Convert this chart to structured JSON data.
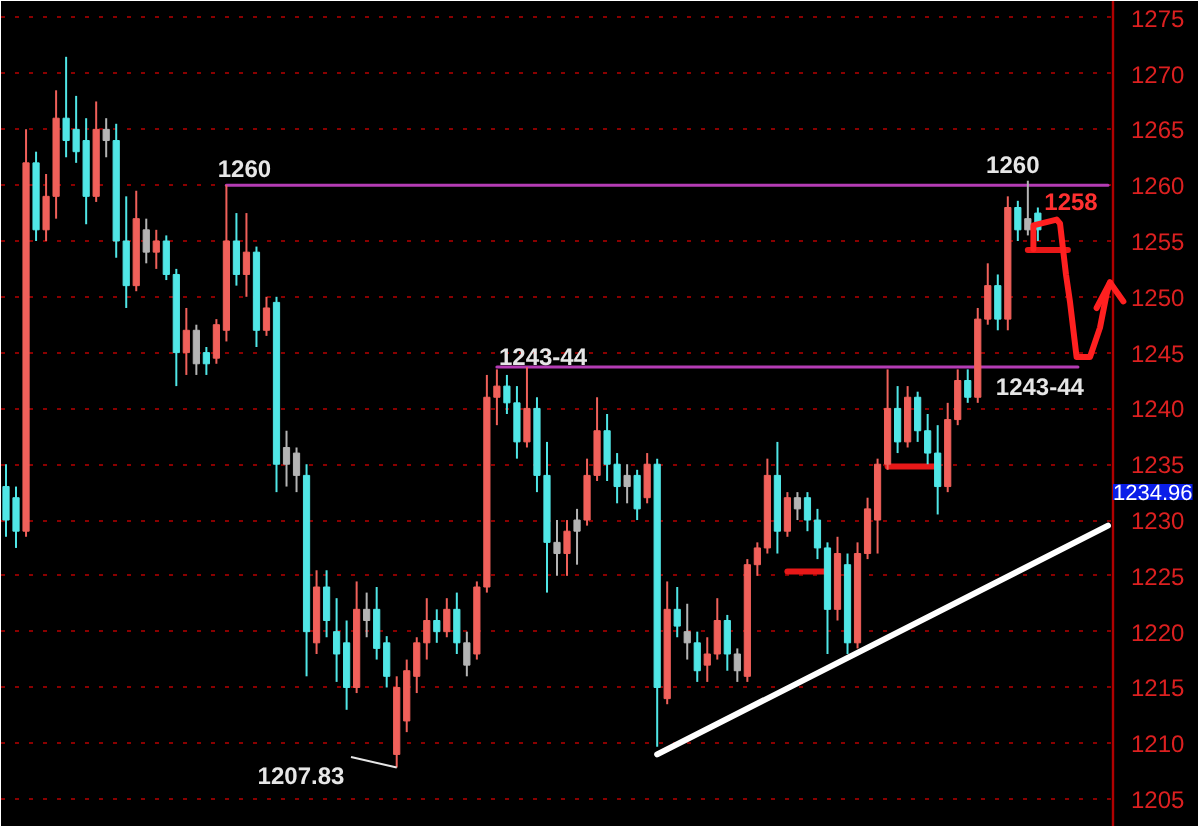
{
  "chart_data": {
    "type": "candlestick",
    "categories": [
      null,
      null,
      null,
      null,
      null,
      null,
      null,
      null,
      null,
      null,
      null,
      null,
      null,
      null,
      null,
      null,
      null,
      null,
      null,
      null,
      null,
      null,
      null,
      null,
      null,
      null,
      null,
      null,
      null,
      null,
      null,
      null,
      null,
      null,
      null,
      null,
      null,
      null,
      null,
      null,
      null,
      null,
      null,
      null,
      null,
      null,
      null,
      null,
      null,
      null,
      null,
      null,
      null,
      null,
      null,
      null,
      null,
      null,
      null,
      null,
      null,
      null,
      null,
      null,
      null,
      null,
      null,
      null,
      null,
      null,
      null,
      null,
      null,
      null,
      null,
      null,
      null,
      null,
      null,
      null,
      null,
      null,
      null,
      null,
      null,
      null,
      null,
      null,
      null,
      null,
      null,
      null,
      null,
      null,
      null,
      null,
      null,
      null,
      null,
      null,
      null,
      null,
      null,
      null,
      null,
      null,
      null,
      null,
      null,
      null,
      null
    ],
    "ohlc": [
      [
        1233,
        1235,
        1228.5,
        1230
      ],
      [
        1232,
        1233,
        1227.5,
        1229
      ],
      [
        1229,
        1265,
        1228.5,
        1262
      ],
      [
        1262,
        1263,
        1255,
        1256
      ],
      [
        1256,
        1261,
        1255,
        1259
      ],
      [
        1259,
        1268.5,
        1257,
        1266
      ],
      [
        1266,
        1271.5,
        1262.5,
        1264
      ],
      [
        1265,
        1268,
        1262,
        1263
      ],
      [
        1264,
        1266,
        1256.5,
        1259
      ],
      [
        1259,
        1267.5,
        1258.5,
        1265
      ],
      [
        1265,
        1266,
        1262.5,
        1264
      ],
      [
        1264,
        1265.5,
        1253.5,
        1255
      ],
      [
        1255,
        1259,
        1249,
        1251
      ],
      [
        1251,
        1259.5,
        1250.5,
        1257
      ],
      [
        1256,
        1257,
        1253,
        1254
      ],
      [
        1254,
        1256,
        1252.5,
        1255
      ],
      [
        1255,
        1255.5,
        1251.5,
        1252
      ],
      [
        1252,
        1252.5,
        1242,
        1245
      ],
      [
        1245,
        1249,
        1243,
        1247
      ],
      [
        1247,
        1247.5,
        1243,
        1244
      ],
      [
        1245,
        1245.5,
        1243,
        1244
      ],
      [
        1244.5,
        1248,
        1244,
        1247.5
      ],
      [
        1247,
        1260,
        1246,
        1255
      ],
      [
        1255,
        1257.5,
        1251,
        1252
      ],
      [
        1252,
        1257.5,
        1250,
        1254
      ],
      [
        1254,
        1254.5,
        1245.5,
        1247
      ],
      [
        1247,
        1250,
        1246.5,
        1249
      ],
      [
        1249.5,
        1250,
        1232.5,
        1235
      ],
      [
        1235,
        1238,
        1233,
        1236.5
      ],
      [
        1236,
        1236.5,
        1232.5,
        1234
      ],
      [
        1234,
        1235,
        1216,
        1220
      ],
      [
        1219,
        1225.5,
        1218,
        1224
      ],
      [
        1224,
        1225.5,
        1219.5,
        1221
      ],
      [
        1220,
        1223,
        1215.5,
        1218
      ],
      [
        1219,
        1221,
        1213,
        1215
      ],
      [
        1215,
        1224.5,
        1214.5,
        1222
      ],
      [
        1222,
        1223.5,
        1219.5,
        1221
      ],
      [
        1222,
        1224,
        1217.5,
        1218.5
      ],
      [
        1219,
        1219.6,
        1215,
        1216
      ],
      [
        1209,
        1216,
        1207.83,
        1215
      ],
      [
        1212,
        1217.5,
        1211,
        1216.5
      ],
      [
        1216,
        1219.5,
        1214.5,
        1219
      ],
      [
        1219,
        1223,
        1217.5,
        1221
      ],
      [
        1221,
        1222,
        1219,
        1220
      ],
      [
        1220,
        1223,
        1219.5,
        1222
      ],
      [
        1222,
        1223.5,
        1218,
        1219
      ],
      [
        1219,
        1220,
        1216,
        1217
      ],
      [
        1218,
        1224.5,
        1217.5,
        1224
      ],
      [
        1224,
        1243,
        1223.5,
        1241
      ],
      [
        1241,
        1243.5,
        1238.5,
        1242
      ],
      [
        1242,
        1243,
        1239.5,
        1240.5
      ],
      [
        1240.5,
        1242,
        1235.5,
        1237
      ],
      [
        1237,
        1243.7,
        1236.5,
        1240
      ],
      [
        1240,
        1241,
        1232.5,
        1234
      ],
      [
        1234,
        1237,
        1223.5,
        1228
      ],
      [
        1228,
        1230,
        1225,
        1227
      ],
      [
        1227,
        1230,
        1225,
        1229
      ],
      [
        1229,
        1231,
        1226,
        1230
      ],
      [
        1230,
        1235.5,
        1229.5,
        1234
      ],
      [
        1234,
        1241,
        1233.5,
        1238
      ],
      [
        1238,
        1239.5,
        1233.5,
        1235
      ],
      [
        1235,
        1236,
        1231.5,
        1233
      ],
      [
        1233,
        1235,
        1231.5,
        1234
      ],
      [
        1234,
        1234.5,
        1230,
        1231
      ],
      [
        1232,
        1236,
        1231.5,
        1235
      ],
      [
        1235,
        1235.5,
        1209.7,
        1215
      ],
      [
        1214,
        1224.5,
        1213.5,
        1222
      ],
      [
        1222,
        1224,
        1219.5,
        1220.5
      ],
      [
        1220,
        1222.5,
        1217.5,
        1219
      ],
      [
        1219,
        1220,
        1215.5,
        1216.5
      ],
      [
        1217,
        1219.5,
        1215.5,
        1218
      ],
      [
        1218,
        1223,
        1217.5,
        1221
      ],
      [
        1221,
        1221.5,
        1216.5,
        1218
      ],
      [
        1218,
        1218.5,
        1215.5,
        1216.5
      ],
      [
        1216,
        1226.5,
        1215.5,
        1226
      ],
      [
        1226,
        1228,
        1225,
        1227.5
      ],
      [
        1227.5,
        1235.5,
        1227,
        1234
      ],
      [
        1234,
        1237,
        1227,
        1229
      ],
      [
        1229,
        1232.5,
        1228.5,
        1232
      ],
      [
        1231,
        1232.5,
        1230,
        1232
      ],
      [
        1232,
        1232.5,
        1229,
        1230
      ],
      [
        1230,
        1231,
        1226.5,
        1227.5
      ],
      [
        1227.5,
        1228,
        1218,
        1222
      ],
      [
        1222,
        1228.5,
        1221,
        1227
      ],
      [
        1226,
        1227,
        1218,
        1219
      ],
      [
        1219,
        1228,
        1218.5,
        1227
      ],
      [
        1227,
        1232,
        1226.5,
        1231
      ],
      [
        1230,
        1235.5,
        1227,
        1235
      ],
      [
        1235,
        1243.5,
        1234.5,
        1240
      ],
      [
        1240,
        1242,
        1236,
        1237
      ],
      [
        1237,
        1242,
        1236.5,
        1241
      ],
      [
        1241,
        1241.5,
        1237,
        1238
      ],
      [
        1238,
        1239.5,
        1235,
        1236
      ],
      [
        1236,
        1238.5,
        1230.5,
        1233
      ],
      [
        1233,
        1240.5,
        1232.5,
        1239
      ],
      [
        1239,
        1243.5,
        1238.5,
        1242.5
      ],
      [
        1242.5,
        1243.5,
        1240.5,
        1241
      ],
      [
        1241,
        1249,
        1240.5,
        1248
      ],
      [
        1248,
        1253,
        1247.5,
        1251
      ],
      [
        1251,
        1252,
        1247,
        1248
      ],
      [
        1248,
        1259,
        1247,
        1258
      ],
      [
        1258,
        1258.6,
        1255,
        1256
      ],
      [
        1256,
        1260.4,
        1255.5,
        1257
      ],
      [
        1257.5,
        1258,
        1255,
        1256
      ],
      null,
      null,
      null,
      null,
      null,
      null,
      null
    ],
    "colors": [
      "#50e6e6",
      "#50e6e6",
      "#f0605a",
      "#50e6e6",
      "#f0605a",
      "#f0605a",
      "#50e6e6",
      "#50e6e6",
      "#50e6e6",
      "#f0605a",
      "#b4b4b4",
      "#50e6e6",
      "#50e6e6",
      "#f0605a",
      "#b4b4b4",
      "#f0605a",
      "#50e6e6",
      "#50e6e6",
      "#f0605a",
      "#b4b4b4",
      "#50e6e6",
      "#f0605a",
      "#f0605a",
      "#50e6e6",
      "#f0605a",
      "#50e6e6",
      "#f0605a",
      "#50e6e6",
      "#b4b4b4",
      "#b4b4b4",
      "#50e6e6",
      "#f0605a",
      "#50e6e6",
      "#50e6e6",
      "#50e6e6",
      "#f0605a",
      "#b4b4b4",
      "#50e6e6",
      "#50e6e6",
      "#f0605a",
      "#f0605a",
      "#f0605a",
      "#f0605a",
      "#50e6e6",
      "#f0605a",
      "#50e6e6",
      "#b4b4b4",
      "#f0605a",
      "#f0605a",
      "#f0605a",
      "#50e6e6",
      "#50e6e6",
      "#f0605a",
      "#50e6e6",
      "#50e6e6",
      "#b4b4b4",
      "#f0605a",
      "#b4b4b4",
      "#f0605a",
      "#f0605a",
      "#50e6e6",
      "#50e6e6",
      "#b4b4b4",
      "#50e6e6",
      "#f0605a",
      "#50e6e6",
      "#f0605a",
      "#50e6e6",
      "#b4b4b4",
      "#50e6e6",
      "#f0605a",
      "#f0605a",
      "#50e6e6",
      "#b4b4b4",
      "#f0605a",
      "#f0605a",
      "#f0605a",
      "#50e6e6",
      "#f0605a",
      "#b4b4b4",
      "#50e6e6",
      "#50e6e6",
      "#50e6e6",
      "#f0605a",
      "#50e6e6",
      "#f0605a",
      "#f0605a",
      "#f0605a",
      "#f0605a",
      "#50e6e6",
      "#f0605a",
      "#50e6e6",
      "#50e6e6",
      "#50e6e6",
      "#f0605a",
      "#f0605a",
      "#50e6e6",
      "#f0605a",
      "#f0605a",
      "#50e6e6",
      "#f0605a",
      "#50e6e6",
      "#b4b4b4",
      "#50e6e6",
      null,
      null,
      null,
      null,
      null,
      null,
      null
    ],
    "ylim": [
      1202.5,
      1276.5
    ],
    "yticks": [
      1205,
      1210,
      1215,
      1220,
      1225,
      1230,
      1235,
      1240,
      1245,
      1250,
      1255,
      1260,
      1265,
      1270,
      1275
    ],
    "grid": "y",
    "series": [
      {
        "type": "line",
        "color": "#b43cb4",
        "values": [
          null,
          null,
          null,
          null,
          null,
          null,
          null,
          null,
          null,
          null,
          null,
          null,
          null,
          null,
          null,
          null,
          null,
          null,
          null,
          null,
          null,
          null,
          1260,
          null,
          null,
          null,
          null,
          null,
          null,
          null,
          null,
          null,
          null,
          null,
          null,
          null,
          null,
          null,
          null,
          null,
          null,
          null,
          null,
          null,
          null,
          null,
          null,
          null,
          null,
          null,
          null,
          null,
          null,
          null,
          null,
          null,
          null,
          null,
          null,
          null,
          null,
          null,
          null,
          null,
          null,
          null,
          null,
          null,
          null,
          null,
          null,
          null,
          null,
          null,
          null,
          null,
          null,
          null,
          null,
          null,
          null,
          null,
          null,
          null,
          null,
          null,
          null,
          null,
          null,
          null,
          null,
          null,
          null,
          null,
          null,
          null,
          null,
          null,
          null,
          null,
          null,
          null,
          null,
          null,
          null,
          null,
          null,
          null,
          null,
          null,
          1260
        ]
      },
      {
        "type": "line",
        "color": "#b43cb4",
        "values": [
          null,
          null,
          null,
          null,
          null,
          null,
          null,
          null,
          null,
          null,
          null,
          null,
          null,
          null,
          null,
          null,
          null,
          null,
          null,
          null,
          null,
          null,
          null,
          null,
          null,
          null,
          null,
          null,
          null,
          null,
          null,
          null,
          null,
          null,
          null,
          null,
          null,
          null,
          null,
          null,
          null,
          null,
          null,
          null,
          null,
          null,
          null,
          null,
          null,
          1243.7,
          null,
          null,
          null,
          null,
          null,
          null,
          null,
          null,
          null,
          null,
          null,
          null,
          null,
          null,
          null,
          null,
          null,
          null,
          null,
          null,
          null,
          null,
          null,
          null,
          null,
          null,
          null,
          null,
          null,
          null,
          null,
          null,
          null,
          null,
          null,
          null,
          null,
          null,
          null,
          null,
          null,
          null,
          null,
          null,
          null,
          null,
          null,
          null,
          null,
          null,
          null,
          null,
          null,
          null,
          null,
          null,
          null,
          1243.7,
          null,
          null,
          null
        ]
      },
      {
        "type": "line",
        "color": "#ffffff",
        "values": [
          null,
          null,
          null,
          null,
          null,
          null,
          null,
          null,
          null,
          null,
          null,
          null,
          null,
          null,
          null,
          null,
          null,
          null,
          null,
          null,
          null,
          null,
          null,
          null,
          null,
          null,
          null,
          null,
          null,
          null,
          null,
          null,
          null,
          null,
          null,
          null,
          null,
          null,
          null,
          null,
          null,
          null,
          null,
          null,
          null,
          null,
          null,
          null,
          null,
          null,
          null,
          null,
          null,
          null,
          null,
          null,
          null,
          null,
          null,
          null,
          null,
          null,
          null,
          null,
          null,
          1209.0,
          null,
          null,
          null,
          null,
          null,
          null,
          null,
          null,
          null,
          null,
          null,
          null,
          null,
          null,
          null,
          null,
          null,
          null,
          null,
          null,
          null,
          null,
          null,
          null,
          null,
          null,
          null,
          null,
          null,
          null,
          null,
          null,
          null,
          null,
          null,
          null,
          null,
          null,
          null,
          null,
          null,
          null,
          null,
          null,
          1229.5
        ]
      },
      {
        "type": "line",
        "color": "#e81818",
        "values": [
          null,
          null,
          null,
          null,
          null,
          null,
          null,
          null,
          null,
          null,
          null,
          null,
          null,
          null,
          null,
          null,
          null,
          null,
          null,
          null,
          null,
          null,
          null,
          null,
          null,
          null,
          null,
          null,
          null,
          null,
          null,
          null,
          null,
          null,
          null,
          null,
          null,
          null,
          null,
          null,
          null,
          null,
          null,
          null,
          null,
          null,
          null,
          null,
          null,
          null,
          null,
          null,
          null,
          null,
          null,
          null,
          null,
          null,
          null,
          null,
          null,
          null,
          null,
          null,
          null,
          null,
          null,
          null,
          null,
          null,
          null,
          null,
          null,
          null,
          null,
          null,
          null,
          null,
          1225.4,
          null,
          null,
          null,
          1225.4,
          null,
          null,
          null,
          null,
          null,
          null,
          null,
          null,
          null,
          null,
          null,
          null,
          null,
          null,
          null,
          null,
          null,
          null,
          null,
          null,
          null,
          null,
          null,
          null,
          null,
          null,
          null,
          null
        ]
      },
      {
        "type": "line",
        "color": "#e81818",
        "values": [
          null,
          null,
          null,
          null,
          null,
          null,
          null,
          null,
          null,
          null,
          null,
          null,
          null,
          null,
          null,
          null,
          null,
          null,
          null,
          null,
          null,
          null,
          null,
          null,
          null,
          null,
          null,
          null,
          null,
          null,
          null,
          null,
          null,
          null,
          null,
          null,
          null,
          null,
          null,
          null,
          null,
          null,
          null,
          null,
          null,
          null,
          null,
          null,
          null,
          null,
          null,
          null,
          null,
          null,
          null,
          null,
          null,
          null,
          null,
          null,
          null,
          null,
          null,
          null,
          null,
          null,
          null,
          null,
          null,
          null,
          null,
          null,
          null,
          null,
          null,
          null,
          null,
          null,
          null,
          null,
          null,
          null,
          null,
          null,
          null,
          null,
          null,
          null,
          1234.8,
          null,
          null,
          null,
          null,
          1234.8,
          null,
          null,
          null,
          null,
          null,
          null,
          null,
          null,
          null,
          null,
          null,
          null,
          null,
          null,
          null,
          null,
          null
        ]
      },
      {
        "type": "line",
        "color": "#e81818",
        "values": [
          null,
          null,
          null,
          null,
          null,
          null,
          null,
          null,
          null,
          null,
          null,
          null,
          null,
          null,
          null,
          null,
          null,
          null,
          null,
          null,
          null,
          null,
          null,
          null,
          null,
          null,
          null,
          null,
          null,
          null,
          null,
          null,
          null,
          null,
          null,
          null,
          null,
          null,
          null,
          null,
          null,
          null,
          null,
          null,
          null,
          null,
          null,
          null,
          null,
          null,
          null,
          null,
          null,
          null,
          null,
          null,
          null,
          null,
          null,
          null,
          null,
          null,
          null,
          null,
          null,
          null,
          null,
          null,
          null,
          null,
          null,
          null,
          null,
          null,
          null,
          null,
          null,
          null,
          null,
          null,
          null,
          null,
          null,
          null,
          null,
          null,
          null,
          null,
          null,
          null,
          null,
          null,
          null,
          null,
          null,
          null,
          null,
          null,
          null,
          null,
          null,
          null,
          1254.2,
          null,
          null,
          null,
          1254.2,
          null,
          null,
          null,
          null
        ]
      }
    ],
    "annotations": [
      {
        "text": "1260",
        "y": 1260
      },
      {
        "text": "1260",
        "y": 1260
      },
      {
        "text": "1243-44",
        "y": 1243.7
      },
      {
        "text": "1243-44",
        "y": 1243.7
      },
      "1258",
      "1207.83",
      "1234.96"
    ]
  }
}
